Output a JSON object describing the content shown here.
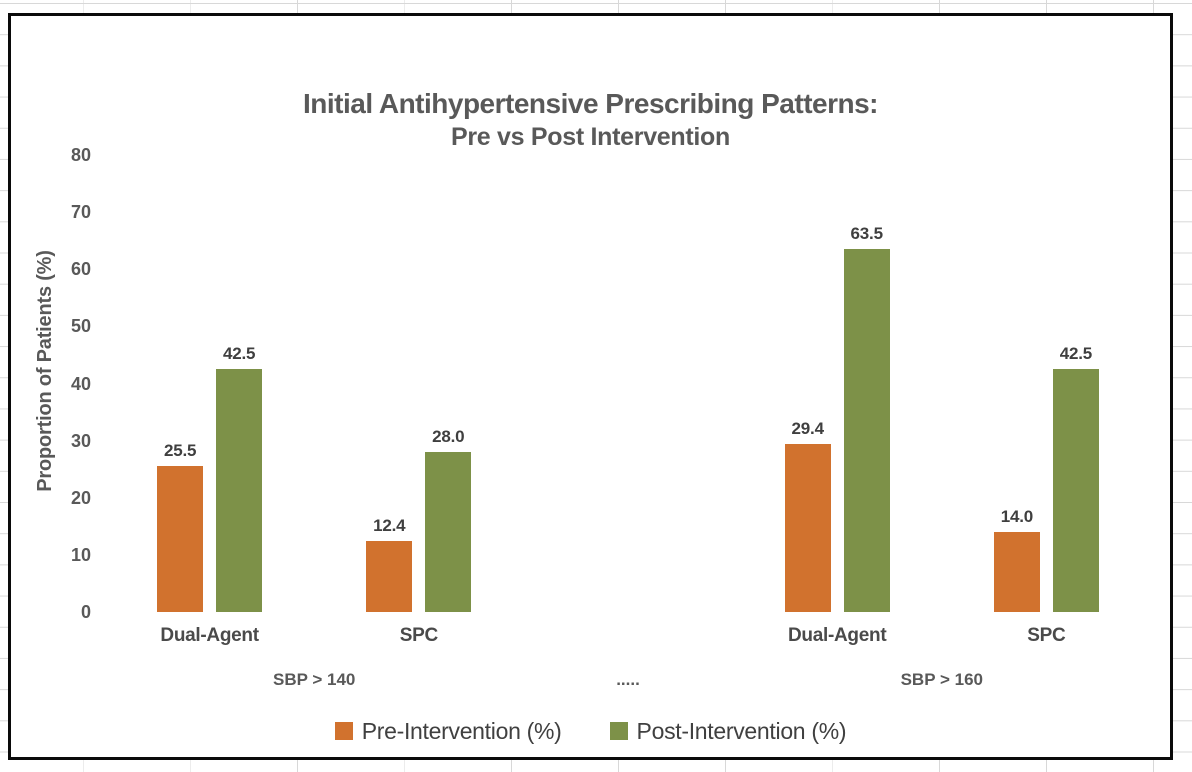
{
  "chart_data": {
    "type": "bar",
    "title": "Initial Antihypertensive Prescribing Patterns:",
    "subtitle": "Pre vs Post Intervention",
    "ylabel": "Proportion of Patients (%)",
    "ylim": [
      0,
      80
    ],
    "yticks": [
      0,
      10,
      20,
      30,
      40,
      50,
      60,
      70,
      80
    ],
    "grid": false,
    "legend_position": "bottom",
    "categories": [
      "Dual-Agent",
      "SPC",
      "",
      "Dual-Agent",
      "SPC"
    ],
    "groups": [
      {
        "label": "SBP > 140",
        "start": 0,
        "end": 1
      },
      {
        "label": ".....",
        "start": 2,
        "end": 2
      },
      {
        "label": "SBP > 160",
        "start": 3,
        "end": 4
      }
    ],
    "series": [
      {
        "name": "Pre-Intervention (%)",
        "color": "#D1722E",
        "values": [
          25.5,
          12.4,
          null,
          29.4,
          14.0
        ]
      },
      {
        "name": "Post-Intervention (%)",
        "color": "#7D9148",
        "values": [
          42.5,
          28.0,
          null,
          63.5,
          42.5
        ]
      }
    ],
    "data_label_decimals": 1
  }
}
